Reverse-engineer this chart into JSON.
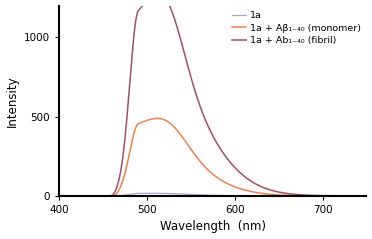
{
  "xlabel": "Wavelength  (nm)",
  "ylabel": "Intensity",
  "xlim": [
    400,
    750
  ],
  "ylim": [
    0,
    1200
  ],
  "yticks": [
    0,
    500,
    1000
  ],
  "xticks": [
    400,
    500,
    600,
    700
  ],
  "legend": [
    {
      "label": "1a",
      "color": "#b0a0cc"
    },
    {
      "label": "1a + Aβ₁₋₄₀ (monomer)",
      "color": "#f08050"
    },
    {
      "label": "1a + Ab₁₋₄₀ (fibril)",
      "color": "#a05060"
    }
  ],
  "background_color": "#ffffff",
  "figsize": [
    3.72,
    2.39
  ],
  "dpi": 100
}
